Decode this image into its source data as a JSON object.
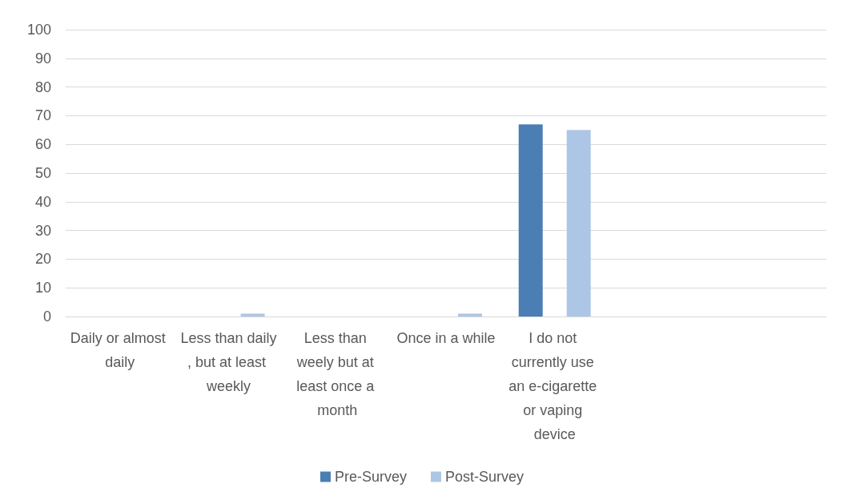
{
  "chart_data": {
    "type": "bar",
    "categories": [
      "Daily or almost daily",
      "Less than daily, but at least weekly",
      "Less than weely but at least once a month",
      "Once in a while",
      "I do not currently use an e-cigarette or vaping device",
      null,
      null
    ],
    "series": [
      {
        "name": "Pre-Survey",
        "color": "#4a7eb4",
        "values": [
          0,
          0,
          0,
          0,
          67,
          null,
          null
        ]
      },
      {
        "name": "Post-Survey",
        "color": "#adc6e5",
        "values": [
          0,
          1,
          0,
          1,
          65,
          null,
          null
        ]
      }
    ],
    "ylim": [
      0,
      100
    ],
    "yticks": [
      0,
      10,
      20,
      30,
      40,
      50,
      60,
      70,
      80,
      90,
      100
    ],
    "grid": "y",
    "legend": "bottom"
  }
}
